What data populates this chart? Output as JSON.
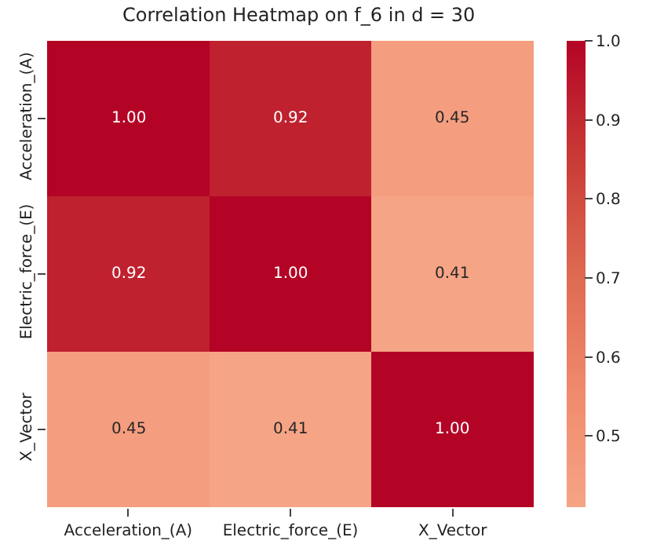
{
  "chart_data": {
    "type": "heatmap",
    "title": "Correlation Heatmap on f_6 in d = 30",
    "categories": [
      "Acceleration_(A)",
      "Electric_force_(E)",
      "X_Vector"
    ],
    "y_categories": [
      "Acceleration_(A)",
      "Electric_force_(E)",
      "X_Vector"
    ],
    "cells": [
      [
        1.0,
        0.92,
        0.45
      ],
      [
        0.92,
        1.0,
        0.41
      ],
      [
        0.45,
        0.41,
        1.0
      ]
    ],
    "cell_labels": [
      [
        "1.00",
        "0.92",
        "0.45"
      ],
      [
        "0.92",
        "1.00",
        "0.41"
      ],
      [
        "0.45",
        "0.41",
        "1.00"
      ]
    ],
    "clim": [
      0.41,
      1.0
    ],
    "cticks": [
      0.5,
      0.6,
      0.7,
      0.8,
      0.9,
      {
        "value": 1,
        "label": "1.0"
      }
    ]
  }
}
